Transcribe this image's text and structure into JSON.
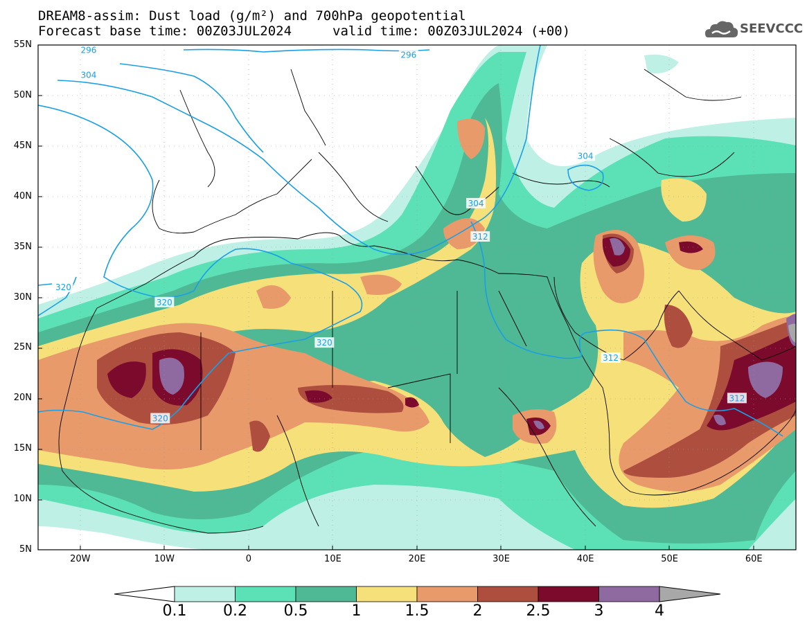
{
  "header": {
    "title_line1": "DREAM8-assim: Dust load (g/m²) and 700hPa geopotential",
    "title_line2": "Forecast base time: 00Z03JUL2024",
    "valid_time": "valid time: 00Z03JUL2024 (+00)",
    "logo_text": "SEEVCCC",
    "logo_icon": "cloud-logo-icon"
  },
  "axes": {
    "latitudes": [
      "55N",
      "50N",
      "45N",
      "40N",
      "35N",
      "30N",
      "25N",
      "20N",
      "15N",
      "10N",
      "5N"
    ],
    "longitudes": [
      "20W",
      "10W",
      "0",
      "10E",
      "20E",
      "30E",
      "40E",
      "50E",
      "60E"
    ],
    "lat_range": [
      5,
      55
    ],
    "lon_range": [
      -25,
      65
    ]
  },
  "contours": {
    "labels": [
      {
        "text": "296",
        "lon": 19,
        "lat": 54
      },
      {
        "text": "296",
        "lon": -19,
        "lat": 54.5
      },
      {
        "text": "304",
        "lon": -19,
        "lat": 52
      },
      {
        "text": "304",
        "lon": 40,
        "lat": 44
      },
      {
        "text": "304",
        "lon": 27,
        "lat": 39.3
      },
      {
        "text": "312",
        "lon": 27.5,
        "lat": 36
      },
      {
        "text": "312",
        "lon": 43,
        "lat": 24
      },
      {
        "text": "312",
        "lon": 58,
        "lat": 20
      },
      {
        "text": "320",
        "lon": -22,
        "lat": 31
      },
      {
        "text": "320",
        "lon": -10,
        "lat": 29.5
      },
      {
        "text": "320",
        "lon": 9,
        "lat": 25.5
      },
      {
        "text": "320",
        "lon": -10.5,
        "lat": 18
      }
    ],
    "line_color": "#1a9fe6"
  },
  "colorbar": {
    "labels": [
      "0.1",
      "0.2",
      "0.5",
      "1",
      "1.5",
      "2",
      "2.5",
      "3",
      "4"
    ],
    "colors": [
      "#ffffff",
      "#bff0e6",
      "#5ce0b6",
      "#4fb894",
      "#f5e07a",
      "#e89a6a",
      "#ad4e3e",
      "#7c0a2c",
      "#8e6aa0",
      "#a8a8a8"
    ]
  }
}
